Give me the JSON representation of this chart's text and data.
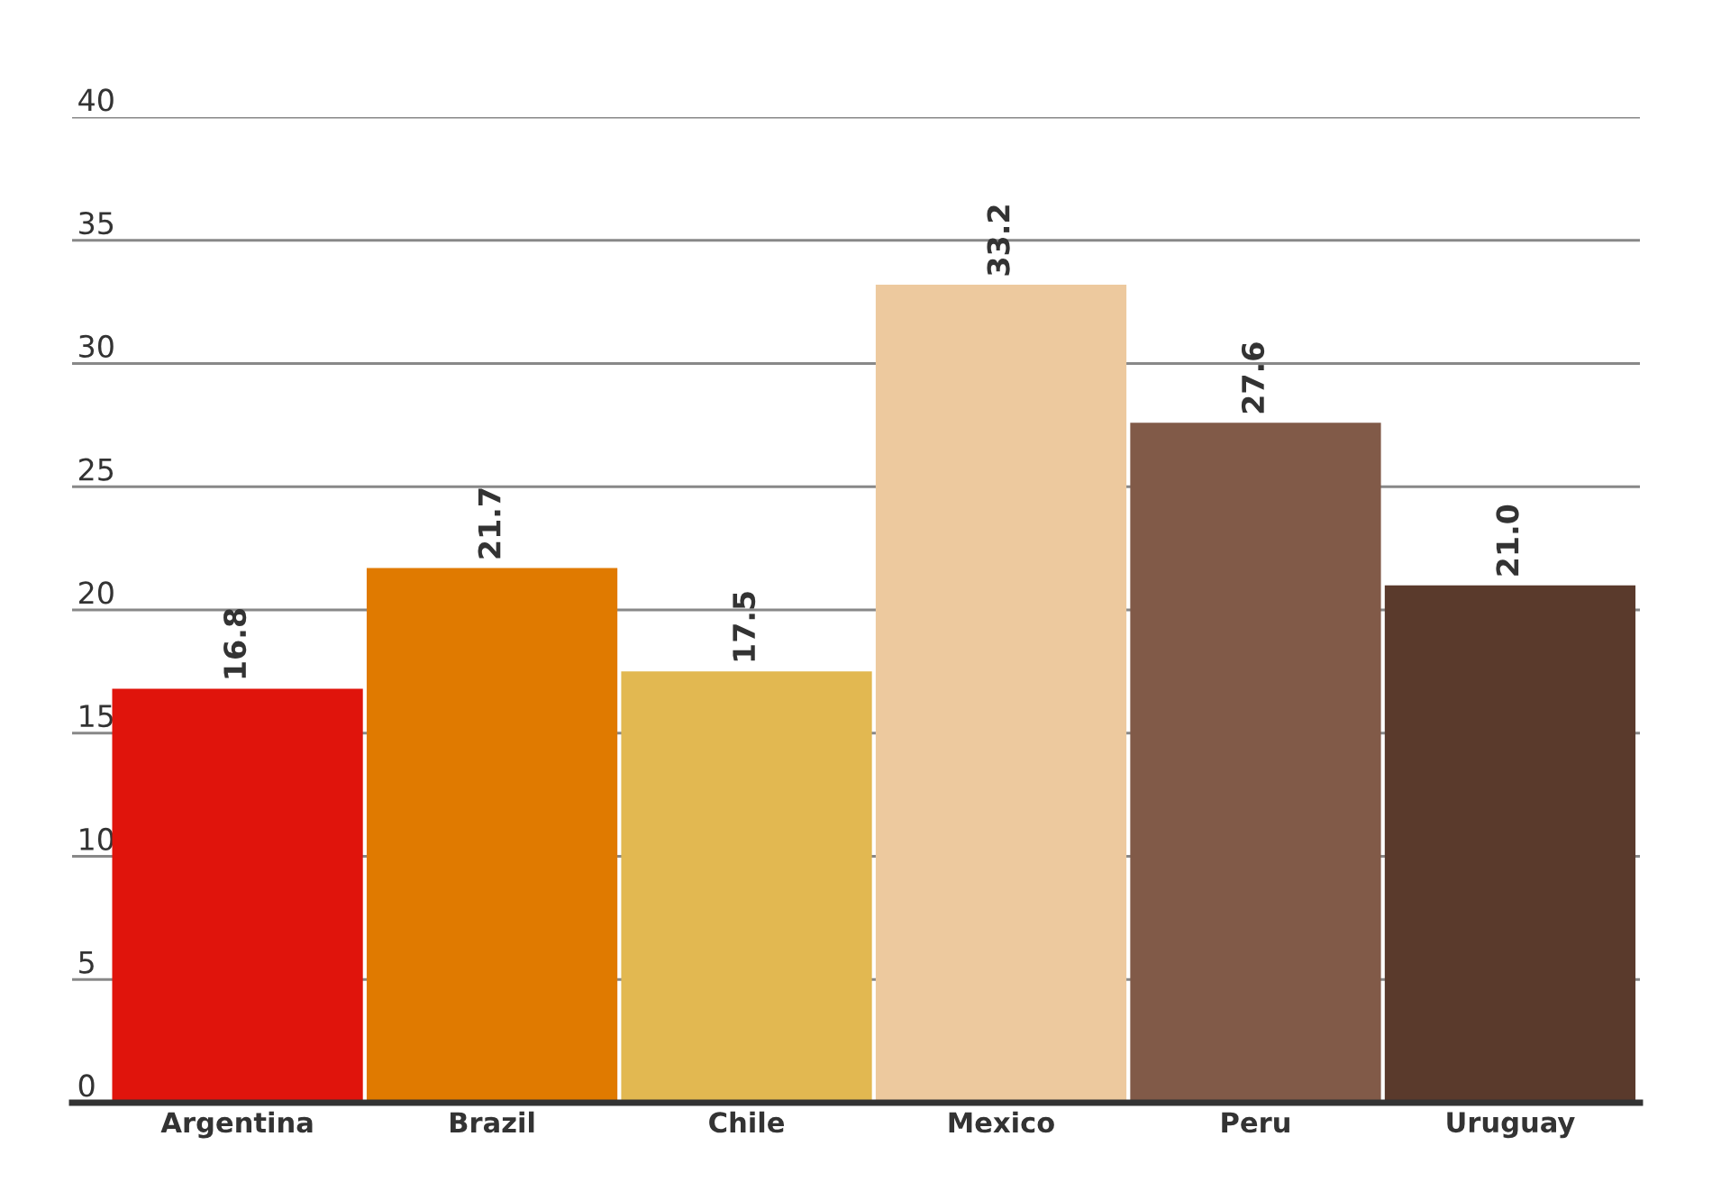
{
  "chart_data": {
    "type": "bar",
    "categories": [
      "Argentina",
      "Brazil",
      "Chile",
      "Mexico",
      "Peru",
      "Uruguay"
    ],
    "values": [
      16.8,
      21.7,
      17.5,
      33.2,
      27.6,
      21.0
    ],
    "value_labels": [
      "16.8",
      "21.7",
      "17.5",
      "33.2",
      "27.6",
      "21.0"
    ],
    "colors": [
      "#e0140c",
      "#e07a00",
      "#e2b851",
      "#edc99e",
      "#815a48",
      "#5a3a2c"
    ],
    "ylim": [
      0,
      40
    ],
    "yticks": [
      0,
      5,
      10,
      15,
      20,
      25,
      30,
      35,
      40
    ],
    "grid": "y",
    "legend": false
  }
}
